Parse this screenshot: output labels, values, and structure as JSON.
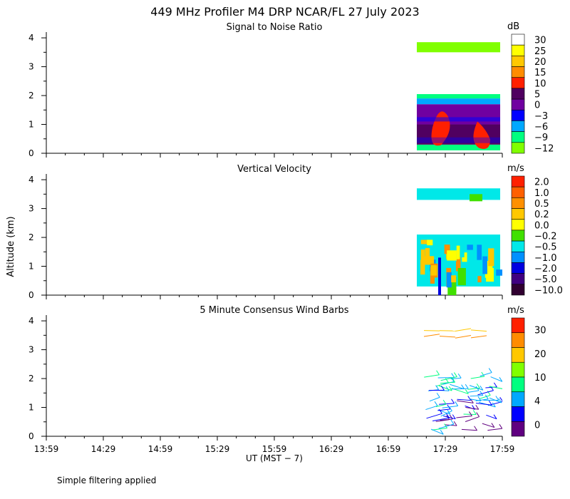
{
  "figure": {
    "title": "449 MHz Profiler M4 DRP NCAR/FL 27 July 2023",
    "ylabel": "Altitude (km)",
    "xlabel": "UT  (MST − 7)",
    "footnote": "Simple filtering applied"
  },
  "chart_data": [
    {
      "type": "heatmap",
      "title": "Signal to Noise Ratio",
      "x_ticks": [
        "13:59",
        "14:29",
        "14:59",
        "15:29",
        "15:59",
        "16:29",
        "16:59",
        "17:29",
        "17:59"
      ],
      "y_ticks": [
        "0",
        "1",
        "2",
        "3",
        "4"
      ],
      "ylim": [
        0,
        4.2
      ],
      "data_time_range": [
        "17:14",
        "17:59"
      ],
      "colorbar": {
        "unit": "dB",
        "labels": [
          "30",
          "25",
          "20",
          "15",
          "10",
          "5",
          "0",
          "−3",
          "−6",
          "−9",
          "−12"
        ],
        "colors": [
          "#ffffff",
          "#ffff00",
          "#ffc800",
          "#ff8c00",
          "#ff2000",
          "#500060",
          "#7000a0",
          "#0000ff",
          "#00a8ff",
          "#00ff80",
          "#80ff00"
        ]
      },
      "layers": [
        {
          "alt_min": 0.1,
          "alt_max": 0.3,
          "color": "#00ff80"
        },
        {
          "alt_min": 0.3,
          "alt_max": 1.0,
          "color": "#500060"
        },
        {
          "alt_min": 1.0,
          "alt_max": 1.7,
          "color": "#7000a0"
        },
        {
          "alt_min": 1.7,
          "alt_max": 1.9,
          "color": "#00a8ff"
        },
        {
          "alt_min": 1.9,
          "alt_max": 2.05,
          "color": "#00ff80"
        },
        {
          "alt_min": 3.5,
          "alt_max": 3.85,
          "color": "#80ff00"
        }
      ]
    },
    {
      "type": "heatmap",
      "title": "Vertical Velocity",
      "x_ticks": [
        "13:59",
        "14:29",
        "14:59",
        "15:29",
        "15:59",
        "16:29",
        "16:59",
        "17:29",
        "17:59"
      ],
      "y_ticks": [
        "0",
        "1",
        "2",
        "3",
        "4"
      ],
      "ylim": [
        0,
        4.2
      ],
      "data_time_range": [
        "17:14",
        "17:59"
      ],
      "colorbar": {
        "unit": "m/s",
        "labels": [
          "2.0",
          "1.0",
          "0.5",
          "0.2",
          "0.0",
          "−0.2",
          "−0.5",
          "−1.0",
          "−2.0",
          "−5.0",
          "−10.0"
        ],
        "colors": [
          "#ff2000",
          "#ff6000",
          "#ff9000",
          "#ffc800",
          "#ffff00",
          "#40e000",
          "#00e8e8",
          "#0090ff",
          "#0000e0",
          "#400080",
          "#300030"
        ]
      },
      "layers": [
        {
          "alt_min": 0.3,
          "alt_max": 2.1,
          "color": "#00e8e8"
        },
        {
          "alt_min": 3.3,
          "alt_max": 3.7,
          "color": "#00e8e8"
        }
      ]
    },
    {
      "type": "scatter",
      "title": "5 Minute Consensus Wind Barbs",
      "x_ticks": [
        "13:59",
        "14:29",
        "14:59",
        "15:29",
        "15:59",
        "16:29",
        "16:59",
        "17:29",
        "17:59"
      ],
      "y_ticks": [
        "0",
        "1",
        "2",
        "3",
        "4"
      ],
      "ylim": [
        0,
        4.2
      ],
      "data_time_range": [
        "17:14",
        "17:59"
      ],
      "colorbar": {
        "unit": "m/s",
        "labels": [
          "30",
          "20",
          "10",
          "4",
          "0"
        ],
        "colors": [
          "#ff2000",
          "#ff8c00",
          "#ffc800",
          "#80ff00",
          "#00ff80",
          "#00a8ff",
          "#0000ff",
          "#600080"
        ]
      }
    }
  ]
}
